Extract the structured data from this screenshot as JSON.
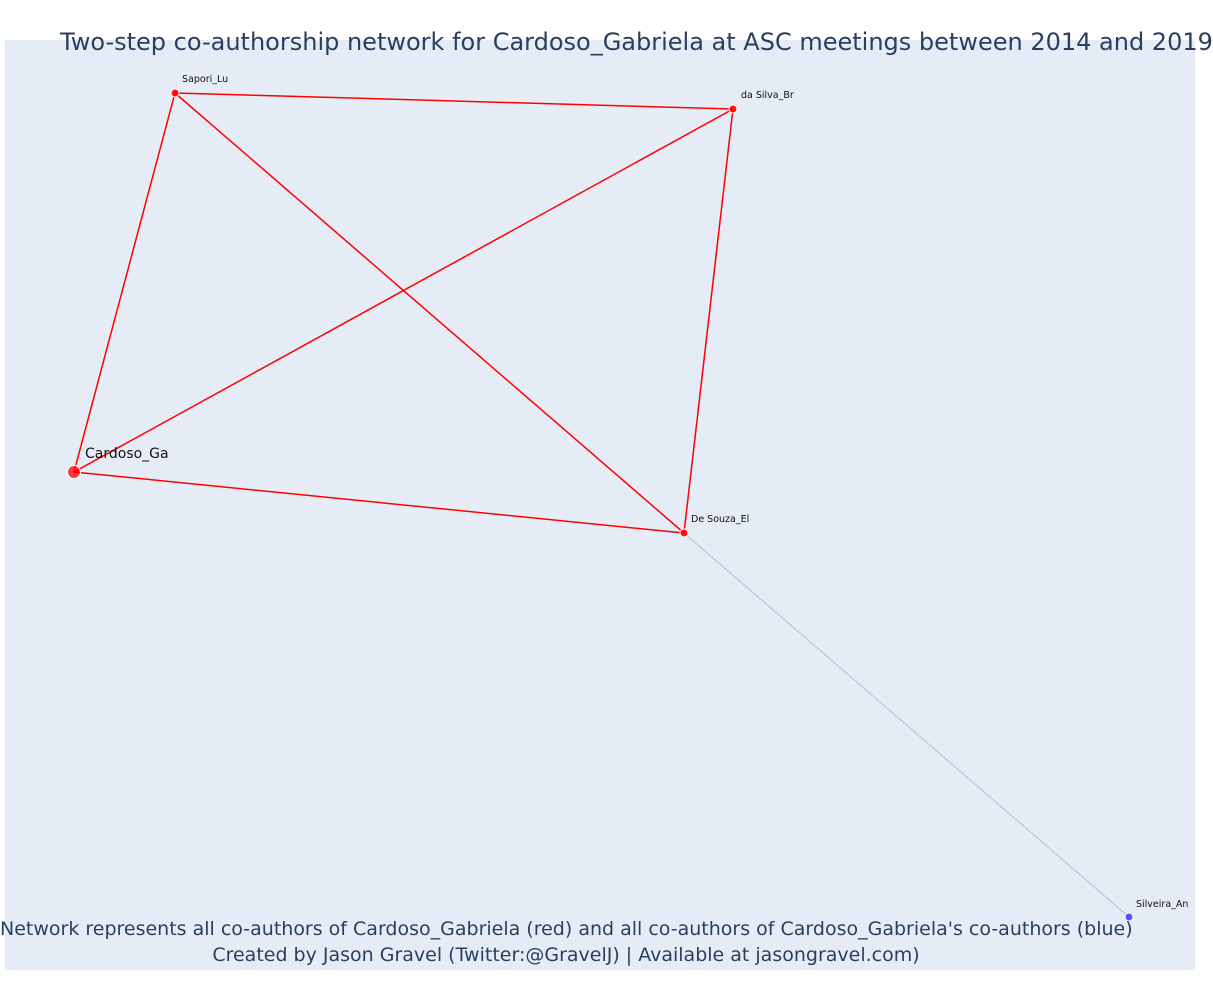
{
  "title": "Two-step co-authorship network for Cardoso_Gabriela at ASC meetings between 2014 and 2019",
  "caption": {
    "line1": "Network represents all co-authors of Cardoso_Gabriela (red) and all co-authors of Cardoso_Gabriela's co-authors (blue)",
    "line2": "Created by Jason Gravel (Twitter:@GravelJ) | Available at jasongravel.com)"
  },
  "colors": {
    "background": "#e5ecf6",
    "first_step": "#ff0000",
    "second_step": "#4040ff",
    "second_step_edge": "#b8bfd0"
  },
  "nodes": [
    {
      "id": "cardoso",
      "label": "Cardoso_Ga",
      "group": "focal"
    },
    {
      "id": "sapori",
      "label": "Sapori_Lu",
      "group": "coauthor"
    },
    {
      "id": "dasilva",
      "label": "da Silva_Br",
      "group": "coauthor"
    },
    {
      "id": "desouza",
      "label": "De Souza_El",
      "group": "coauthor"
    },
    {
      "id": "silveira",
      "label": "Silveira_An",
      "group": "second-step"
    }
  ],
  "edges": [
    {
      "source": "cardoso",
      "target": "sapori",
      "group": "first-step"
    },
    {
      "source": "cardoso",
      "target": "dasilva",
      "group": "first-step"
    },
    {
      "source": "cardoso",
      "target": "desouza",
      "group": "first-step"
    },
    {
      "source": "sapori",
      "target": "dasilva",
      "group": "first-step"
    },
    {
      "source": "sapori",
      "target": "desouza",
      "group": "first-step"
    },
    {
      "source": "dasilva",
      "target": "desouza",
      "group": "first-step"
    },
    {
      "source": "desouza",
      "target": "silveira",
      "group": "second-step"
    }
  ]
}
